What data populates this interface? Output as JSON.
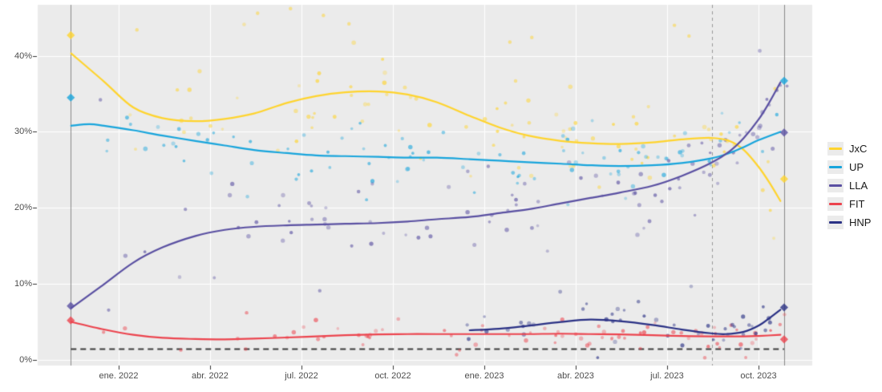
{
  "chart_data": {
    "type": "scatter",
    "title": "",
    "x_axis": {
      "range": [
        2021.7785,
        2023.897
      ],
      "ticks": [
        2022.0,
        2022.25,
        2022.5,
        2022.75,
        2023.0,
        2023.25,
        2023.5,
        2023.75
      ],
      "tick_labels": [
        "ene. 2022",
        "abr. 2022",
        "jul. 2022",
        "oct. 2022",
        "ene. 2023",
        "abr. 2023",
        "jul. 2023",
        "oct. 2023"
      ]
    },
    "y_axis": {
      "range": [
        -0.74,
        46.7
      ],
      "ticks": [
        0,
        10,
        20,
        30,
        40
      ],
      "tick_labels": [
        "0%",
        "10%",
        "20%",
        "30%",
        "40%"
      ]
    },
    "legend": {
      "position": "right",
      "items": [
        "JxC",
        "UP",
        "LLA",
        "FIT",
        "HNP"
      ]
    },
    "seed": 20231022,
    "series": [
      {
        "name": "JxC",
        "color": "#FFD42E",
        "trend": [
          [
            2021.87,
            40.3
          ],
          [
            2021.96,
            36.6
          ],
          [
            2022.04,
            33.2
          ],
          [
            2022.12,
            31.8
          ],
          [
            2022.21,
            31.4
          ],
          [
            2022.29,
            31.7
          ],
          [
            2022.37,
            32.4
          ],
          [
            2022.46,
            33.8
          ],
          [
            2022.54,
            34.7
          ],
          [
            2022.62,
            35.2
          ],
          [
            2022.71,
            35.3
          ],
          [
            2022.79,
            34.9
          ],
          [
            2022.87,
            33.9
          ],
          [
            2022.96,
            32.1
          ],
          [
            2023.04,
            30.6
          ],
          [
            2023.12,
            29.5
          ],
          [
            2023.21,
            28.8
          ],
          [
            2023.29,
            28.5
          ],
          [
            2023.37,
            28.4
          ],
          [
            2023.46,
            28.6
          ],
          [
            2023.54,
            29.0
          ],
          [
            2023.62,
            29.2
          ],
          [
            2023.67,
            28.8
          ],
          [
            2023.71,
            27.6
          ],
          [
            2023.75,
            25.4
          ],
          [
            2023.78,
            23.3
          ],
          [
            2023.81,
            20.9
          ]
        ],
        "scatter_spec": {
          "n": 90,
          "sigma": 3.4,
          "x_start": 2021.89,
          "x_end": 2023.83,
          "bias": 0.7
        }
      },
      {
        "name": "UP",
        "color": "#18A5DC",
        "trend": [
          [
            2021.87,
            30.8
          ],
          [
            2021.92,
            31.0
          ],
          [
            2021.96,
            30.8
          ],
          [
            2022.04,
            30.2
          ],
          [
            2022.12,
            29.5
          ],
          [
            2022.21,
            28.8
          ],
          [
            2022.29,
            28.2
          ],
          [
            2022.37,
            27.6
          ],
          [
            2022.46,
            27.2
          ],
          [
            2022.54,
            26.9
          ],
          [
            2022.62,
            26.8
          ],
          [
            2022.71,
            26.7
          ],
          [
            2022.79,
            26.6
          ],
          [
            2022.87,
            26.6
          ],
          [
            2022.96,
            26.4
          ],
          [
            2023.04,
            26.2
          ],
          [
            2023.12,
            26.0
          ],
          [
            2023.21,
            25.8
          ],
          [
            2023.29,
            25.6
          ],
          [
            2023.37,
            25.5
          ],
          [
            2023.46,
            25.6
          ],
          [
            2023.54,
            25.9
          ],
          [
            2023.62,
            26.5
          ],
          [
            2023.67,
            27.2
          ],
          [
            2023.71,
            28.0
          ],
          [
            2023.75,
            28.9
          ],
          [
            2023.81,
            30.0
          ]
        ],
        "scatter_spec": {
          "n": 90,
          "sigma": 2.5,
          "x_start": 2021.89,
          "x_end": 2023.83,
          "bias": 0.7
        }
      },
      {
        "name": "LLA",
        "color": "#5A50A2",
        "trend": [
          [
            2021.87,
            6.8
          ],
          [
            2021.95,
            9.6
          ],
          [
            2022.04,
            12.8
          ],
          [
            2022.12,
            14.8
          ],
          [
            2022.21,
            16.3
          ],
          [
            2022.29,
            17.1
          ],
          [
            2022.37,
            17.5
          ],
          [
            2022.46,
            17.7
          ],
          [
            2022.54,
            17.8
          ],
          [
            2022.62,
            17.9
          ],
          [
            2022.71,
            18.0
          ],
          [
            2022.79,
            18.2
          ],
          [
            2022.87,
            18.5
          ],
          [
            2022.96,
            18.8
          ],
          [
            2023.04,
            19.3
          ],
          [
            2023.12,
            19.8
          ],
          [
            2023.21,
            20.6
          ],
          [
            2023.29,
            21.3
          ],
          [
            2023.37,
            22.0
          ],
          [
            2023.46,
            22.9
          ],
          [
            2023.54,
            24.2
          ],
          [
            2023.62,
            25.9
          ],
          [
            2023.67,
            27.4
          ],
          [
            2023.71,
            29.2
          ],
          [
            2023.75,
            31.6
          ],
          [
            2023.78,
            33.9
          ],
          [
            2023.81,
            36.5
          ]
        ],
        "scatter_spec": {
          "n": 95,
          "sigma": 3.0,
          "x_start": 2021.92,
          "x_end": 2023.83,
          "bias": 0.72
        }
      },
      {
        "name": "FIT",
        "color": "#EC444E",
        "trend": [
          [
            2021.87,
            5.0
          ],
          [
            2021.96,
            4.0
          ],
          [
            2022.04,
            3.3
          ],
          [
            2022.12,
            2.9
          ],
          [
            2022.21,
            2.75
          ],
          [
            2022.29,
            2.7
          ],
          [
            2022.37,
            2.8
          ],
          [
            2022.46,
            2.95
          ],
          [
            2022.54,
            3.1
          ],
          [
            2022.62,
            3.25
          ],
          [
            2022.71,
            3.35
          ],
          [
            2022.79,
            3.4
          ],
          [
            2022.87,
            3.4
          ],
          [
            2022.96,
            3.4
          ],
          [
            2023.04,
            3.4
          ],
          [
            2023.12,
            3.4
          ],
          [
            2023.21,
            3.45
          ],
          [
            2023.29,
            3.4
          ],
          [
            2023.37,
            3.35
          ],
          [
            2023.46,
            3.25
          ],
          [
            2023.54,
            3.15
          ],
          [
            2023.62,
            3.1
          ],
          [
            2023.71,
            3.1
          ],
          [
            2023.75,
            3.15
          ],
          [
            2023.81,
            3.3
          ]
        ],
        "scatter_spec": {
          "n": 75,
          "sigma": 1.0,
          "x_start": 2021.89,
          "x_end": 2023.83,
          "bias": 0.7
        }
      },
      {
        "name": "HNP",
        "color": "#2A3185",
        "trend": [
          [
            2022.96,
            3.9
          ],
          [
            2023.04,
            4.1
          ],
          [
            2023.12,
            4.5
          ],
          [
            2023.21,
            5.0
          ],
          [
            2023.29,
            5.3
          ],
          [
            2023.37,
            5.1
          ],
          [
            2023.46,
            4.6
          ],
          [
            2023.54,
            4.0
          ],
          [
            2023.62,
            3.5
          ],
          [
            2023.66,
            3.4
          ],
          [
            2023.71,
            3.7
          ],
          [
            2023.75,
            4.5
          ],
          [
            2023.78,
            5.5
          ],
          [
            2023.81,
            6.6
          ]
        ],
        "scatter_spec": {
          "n": 45,
          "sigma": 1.15,
          "x_start": 2022.95,
          "x_end": 2023.83,
          "bias": 0.85
        }
      }
    ],
    "outlier_points": [
      [
        "JxC",
        2022.05,
        43.4
      ],
      [
        "JxC",
        2022.38,
        45.6
      ],
      [
        "JxC",
        2022.47,
        46.2
      ],
      [
        "JxC",
        2022.56,
        45.3
      ],
      [
        "JxC",
        2022.63,
        44.2
      ],
      [
        "JxC",
        2023.07,
        41.8
      ],
      [
        "JxC",
        2023.13,
        42.4
      ],
      [
        "JxC",
        2023.52,
        44.0
      ],
      [
        "JxC",
        2023.56,
        42.6
      ],
      [
        "LLA",
        2021.95,
        34.2
      ],
      [
        "LLA",
        2022.55,
        9.1
      ],
      [
        "UP",
        2021.97,
        28.9
      ],
      [
        "FIT",
        2022.35,
        6.2
      ],
      [
        "FIT",
        2022.17,
        1.3
      ],
      [
        "HNP",
        2023.27,
        6.7
      ]
    ],
    "election_markers": [
      {
        "x": 2021.869,
        "series": "JxC",
        "value": 42.7
      },
      {
        "x": 2021.869,
        "series": "UP",
        "value": 34.5
      },
      {
        "x": 2021.869,
        "series": "LLA",
        "value": 7.1
      },
      {
        "x": 2021.869,
        "series": "FIT",
        "value": 5.2
      },
      {
        "x": 2023.82,
        "series": "UP",
        "value": 36.7
      },
      {
        "x": 2023.82,
        "series": "LLA",
        "value": 29.9
      },
      {
        "x": 2023.82,
        "series": "JxC",
        "value": 23.8
      },
      {
        "x": 2023.82,
        "series": "HNP",
        "value": 6.9
      },
      {
        "x": 2023.82,
        "series": "FIT",
        "value": 2.7
      }
    ],
    "reference_lines": {
      "solid_vlines": [
        2021.869,
        2023.82
      ],
      "dashed_vlines": [
        2023.622
      ],
      "dashed_hline": {
        "y": 1.5,
        "x_span": [
          2021.869,
          2023.82
        ]
      }
    },
    "style": {
      "panel_bg": "#EBEBEB",
      "grid": "#FFFFFF",
      "axis_text": "#4D4D4D",
      "tick_mark": "#333333",
      "legend_text": "#1A1A1A",
      "legend_key_bg": "#EBEBEB",
      "solid_vline": "#8A8A8A",
      "dashed_vline": "#999999",
      "dashed_hline": "#3C3C3C",
      "point_alpha": 0.45,
      "diamond_alpha": 0.8
    }
  }
}
